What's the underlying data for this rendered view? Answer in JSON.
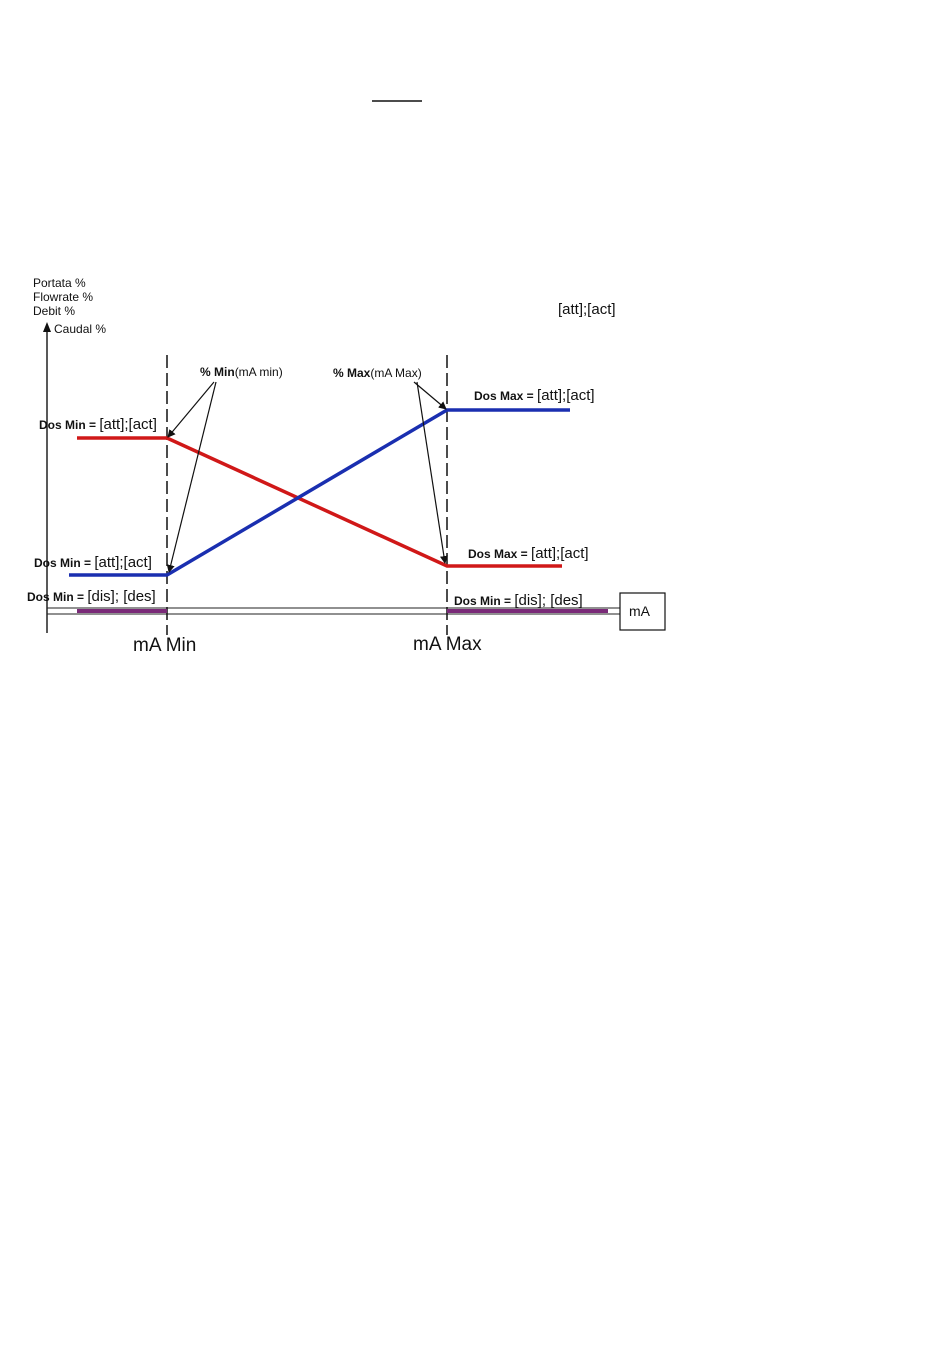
{
  "y_axis_labels": [
    "Portata %",
    "Flowrate %",
    "Debit %",
    "Caudal %"
  ],
  "legend_mode": "[att];[act]",
  "annotations": {
    "pct_min_prefix": "% ",
    "pct_min_bold": "Min",
    "pct_min_suffix": "(mA min)",
    "pct_max_prefix": "% ",
    "pct_max_bold": "Max",
    "pct_max_suffix": "(mA Max)"
  },
  "labels": {
    "dos_min_red_prefix": "Dos Min = ",
    "dos_min_red_value": "[att];[act]",
    "dos_min_blue_prefix": "Dos Min = ",
    "dos_min_blue_value": "[att];[act]",
    "dos_min_dis_prefix": "Dos Min = ",
    "dos_min_dis_value": "[dis]; [des]",
    "dos_max_blue_prefix": "Dos Max = ",
    "dos_max_blue_value": "[att];[act]",
    "dos_max_red_prefix": "Dos Max = ",
    "dos_max_red_value": "[att];[act]",
    "dos_min_dis_right_prefix": "Dos Min = ",
    "dos_min_dis_right_value": "[dis]; [des]"
  },
  "x_axis": {
    "ma_min": "mA Min",
    "ma_max": "mA Max",
    "unit_box": "mA"
  },
  "colors": {
    "red_line": "#d01818",
    "blue_line": "#1a2fb0",
    "purple_line": "#7a2a78",
    "axis": "#222222"
  }
}
